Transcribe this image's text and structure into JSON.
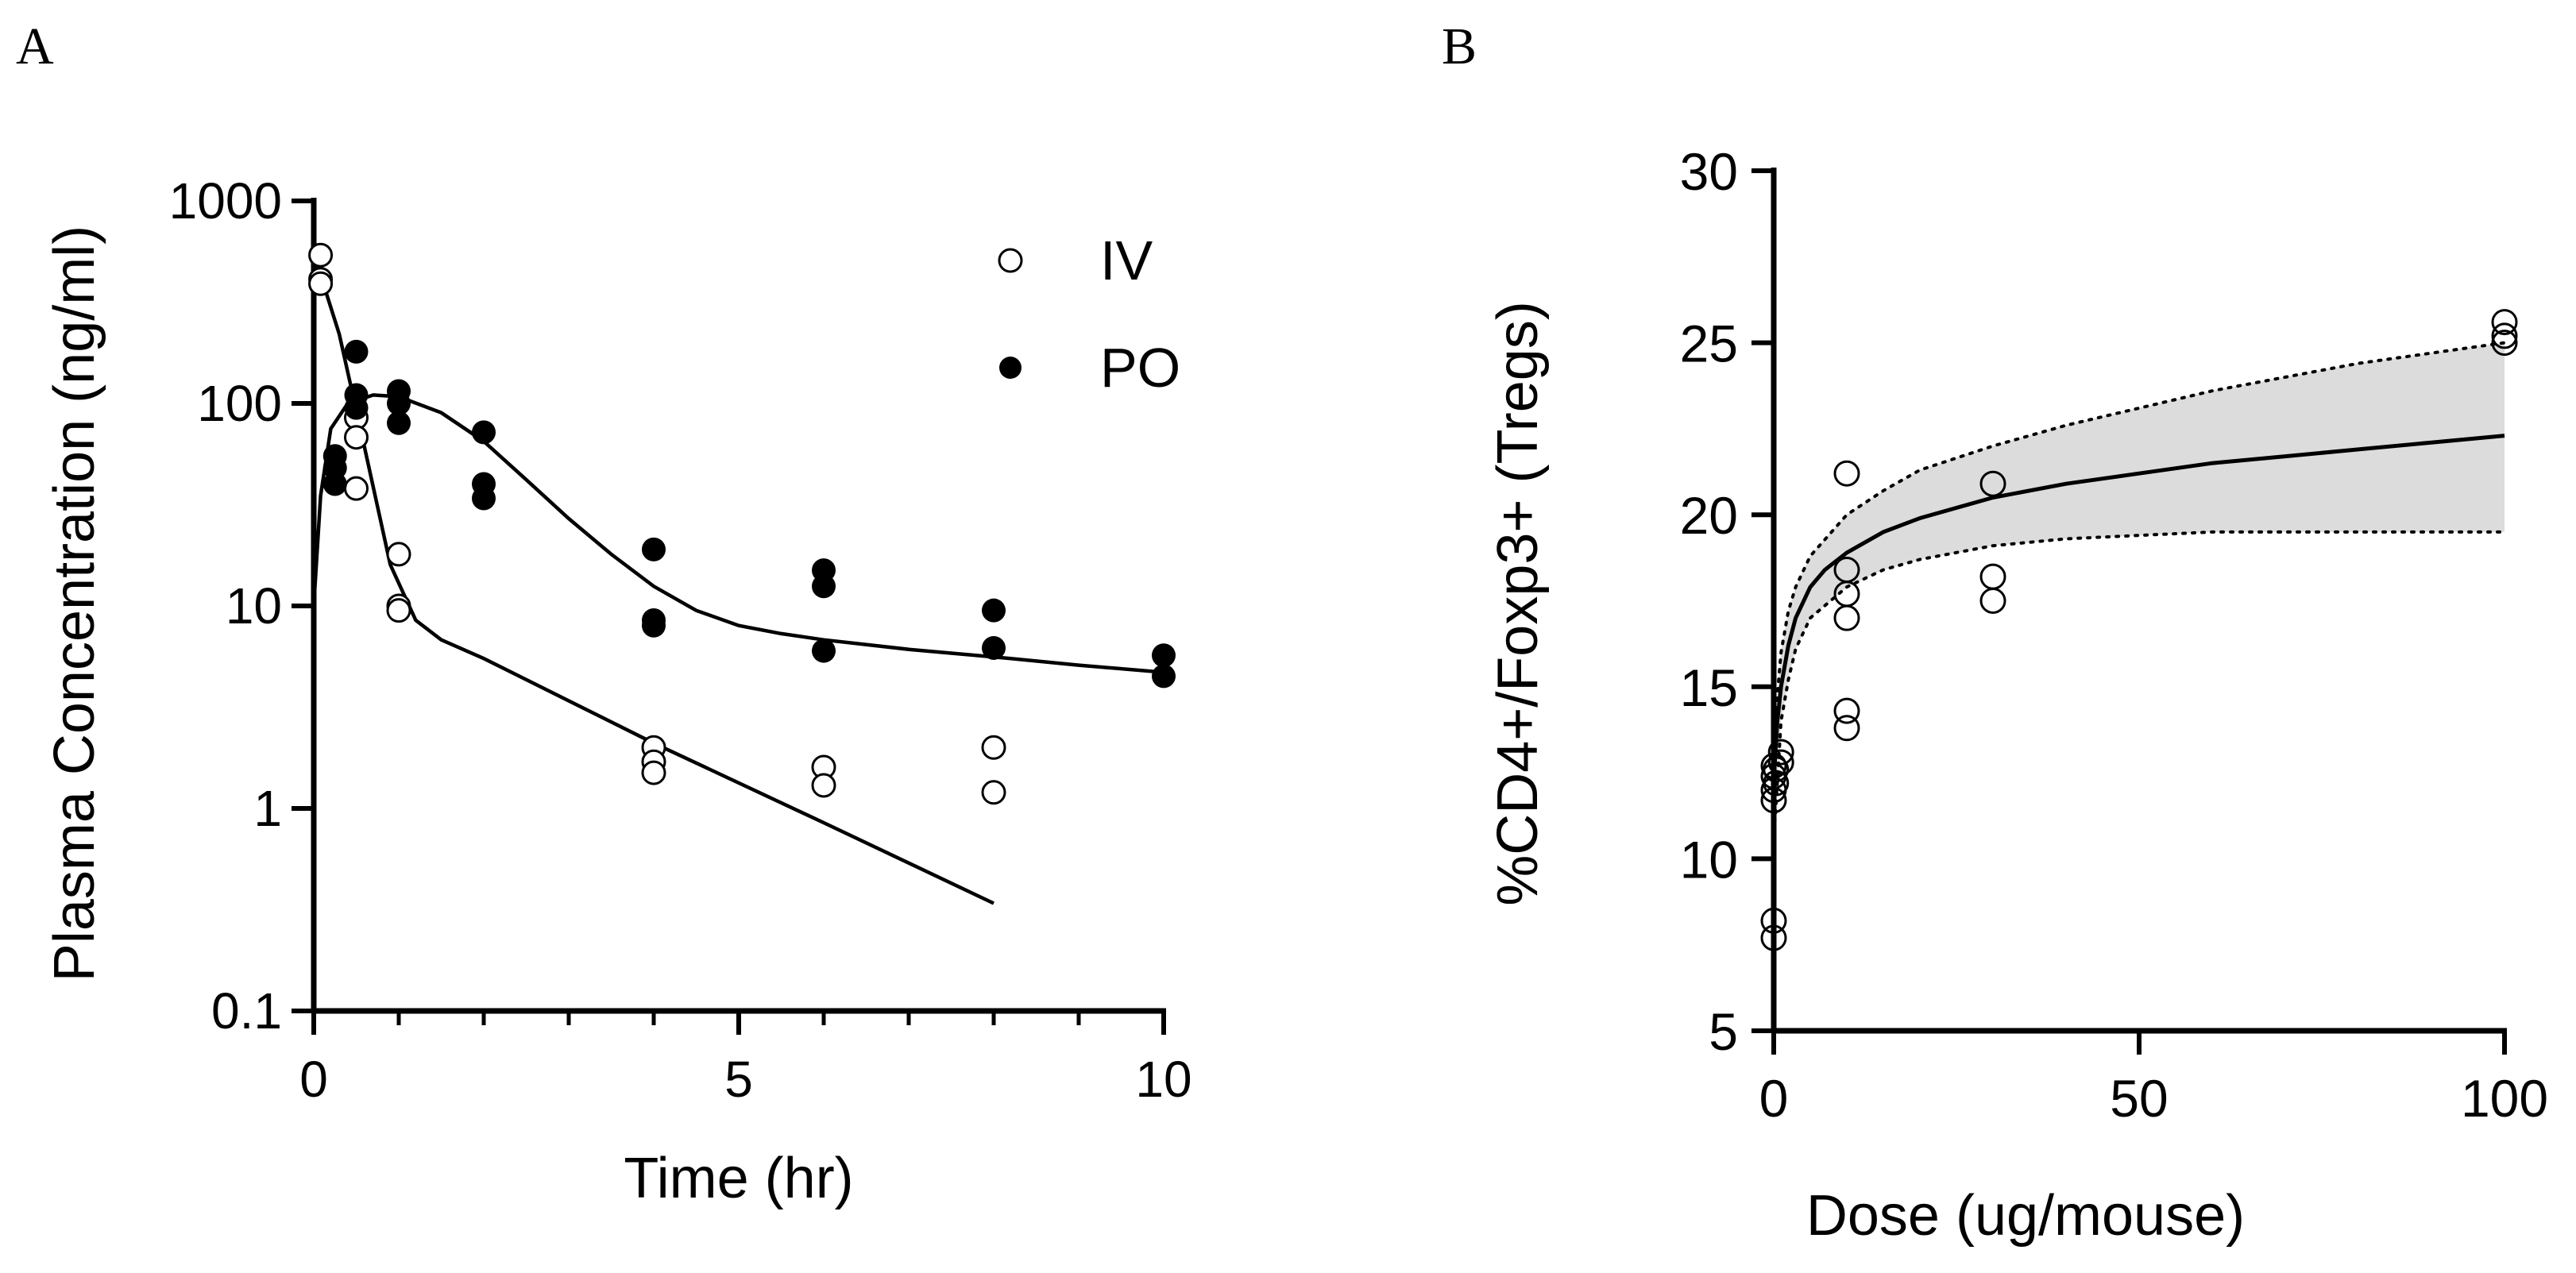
{
  "chart_data": [
    {
      "panel": "A",
      "type": "scatter",
      "xlabel": "Time (hr)",
      "ylabel": "Plasma Concentration (ng/ml)",
      "xlim": [
        0,
        10
      ],
      "ylim": [
        0.1,
        1000
      ],
      "yscale": "log",
      "x_ticks": [
        0,
        5,
        10
      ],
      "x_tick_labels": [
        "0",
        "5",
        "10"
      ],
      "y_ticks": [
        0.1,
        1,
        10,
        100,
        1000
      ],
      "y_tick_labels": [
        "0.1",
        "1",
        "10",
        "100",
        "1000"
      ],
      "legend": {
        "position": "top-right",
        "entries": [
          "IV",
          "PO"
        ]
      },
      "series": [
        {
          "name": "IV",
          "marker": "open-circle",
          "points": [
            [
              0.08,
              540
            ],
            [
              0.08,
              410
            ],
            [
              0.08,
              390
            ],
            [
              0.5,
              85
            ],
            [
              0.5,
              68
            ],
            [
              0.5,
              38
            ],
            [
              1,
              18
            ],
            [
              1,
              10
            ],
            [
              1,
              9.5
            ],
            [
              4,
              2.0
            ],
            [
              4,
              1.7
            ],
            [
              4,
              1.5
            ],
            [
              6,
              1.6
            ],
            [
              6,
              1.3
            ],
            [
              8,
              2.0
            ],
            [
              8,
              1.2
            ]
          ],
          "fit": [
            [
              0,
              550
            ],
            [
              0.3,
              220
            ],
            [
              0.6,
              60
            ],
            [
              0.9,
              16
            ],
            [
              1.2,
              8.5
            ],
            [
              1.5,
              6.8
            ],
            [
              2,
              5.5
            ],
            [
              4,
              2.1
            ],
            [
              6,
              0.85
            ],
            [
              8,
              0.34
            ]
          ]
        },
        {
          "name": "PO",
          "marker": "filled-circle",
          "points": [
            [
              0.25,
              55
            ],
            [
              0.25,
              48
            ],
            [
              0.25,
              40
            ],
            [
              0.5,
              180
            ],
            [
              0.5,
              110
            ],
            [
              0.5,
              95
            ],
            [
              1,
              115
            ],
            [
              1,
              100
            ],
            [
              1,
              80
            ],
            [
              2,
              72
            ],
            [
              2,
              40
            ],
            [
              2,
              34
            ],
            [
              4,
              19
            ],
            [
              4,
              8.5
            ],
            [
              4,
              8
            ],
            [
              6,
              15
            ],
            [
              6,
              12.5
            ],
            [
              6,
              6
            ],
            [
              8,
              9.5
            ],
            [
              8,
              6.2
            ],
            [
              10,
              5.7
            ],
            [
              10,
              4.5
            ]
          ],
          "fit": [
            [
              0,
              10
            ],
            [
              0.08,
              35
            ],
            [
              0.2,
              75
            ],
            [
              0.4,
              100
            ],
            [
              0.7,
              110
            ],
            [
              1,
              108
            ],
            [
              1.5,
              90
            ],
            [
              2,
              65
            ],
            [
              2.5,
              42
            ],
            [
              3,
              27
            ],
            [
              3.5,
              18
            ],
            [
              4,
              12.5
            ],
            [
              4.5,
              9.5
            ],
            [
              5,
              8
            ],
            [
              5.5,
              7.3
            ],
            [
              6,
              6.8
            ],
            [
              7,
              6.1
            ],
            [
              8,
              5.6
            ],
            [
              9,
              5.1
            ],
            [
              10,
              4.7
            ]
          ]
        }
      ]
    },
    {
      "panel": "B",
      "type": "scatter",
      "xlabel": "Dose (ug/mouse)",
      "ylabel": "%CD4+/Foxp3+ (Tregs)",
      "xlim": [
        0,
        100
      ],
      "ylim": [
        5,
        30
      ],
      "x_ticks": [
        0,
        50,
        100
      ],
      "x_tick_labels": [
        "0",
        "50",
        "100"
      ],
      "y_ticks": [
        5,
        10,
        15,
        20,
        25,
        30
      ],
      "y_tick_labels": [
        "5",
        "10",
        "15",
        "20",
        "25",
        "30"
      ],
      "series": [
        {
          "name": "Tregs",
          "marker": "open-circle",
          "points": [
            [
              0,
              8.2
            ],
            [
              0,
              7.7
            ],
            [
              0,
              12.7
            ],
            [
              0,
              12.4
            ],
            [
              0,
              12.0
            ],
            [
              0,
              11.7
            ],
            [
              0.3,
              12.6
            ],
            [
              0.3,
              12.2
            ],
            [
              1,
              13.1
            ],
            [
              1,
              12.8
            ],
            [
              10,
              21.2
            ],
            [
              10,
              18.4
            ],
            [
              10,
              17.7
            ],
            [
              10,
              17.0
            ],
            [
              10,
              14.3
            ],
            [
              10,
              13.8
            ],
            [
              30,
              20.9
            ],
            [
              30,
              18.2
            ],
            [
              30,
              17.5
            ],
            [
              100,
              25.6
            ],
            [
              100,
              25.2
            ],
            [
              100,
              25.0
            ]
          ],
          "fit": [
            [
              0,
              12.3
            ],
            [
              0.5,
              14.0
            ],
            [
              1,
              15.0
            ],
            [
              2,
              16.2
            ],
            [
              3,
              17.0
            ],
            [
              5,
              17.9
            ],
            [
              7,
              18.4
            ],
            [
              10,
              18.9
            ],
            [
              15,
              19.5
            ],
            [
              20,
              19.9
            ],
            [
              30,
              20.5
            ],
            [
              40,
              20.9
            ],
            [
              50,
              21.2
            ],
            [
              60,
              21.5
            ],
            [
              70,
              21.7
            ],
            [
              80,
              21.9
            ],
            [
              90,
              22.1
            ],
            [
              100,
              22.3
            ]
          ],
          "ci_upper": [
            [
              0,
              13.5
            ],
            [
              1,
              16.0
            ],
            [
              2,
              17.2
            ],
            [
              3,
              17.9
            ],
            [
              5,
              18.8
            ],
            [
              10,
              20.0
            ],
            [
              15,
              20.7
            ],
            [
              20,
              21.3
            ],
            [
              30,
              22.0
            ],
            [
              40,
              22.6
            ],
            [
              50,
              23.1
            ],
            [
              60,
              23.6
            ],
            [
              70,
              24.0
            ],
            [
              80,
              24.4
            ],
            [
              90,
              24.7
            ],
            [
              100,
              25.0
            ]
          ],
          "ci_lower": [
            [
              0,
              10.5
            ],
            [
              1,
              14.0
            ],
            [
              2,
              15.2
            ],
            [
              3,
              16.1
            ],
            [
              5,
              17.0
            ],
            [
              10,
              17.9
            ],
            [
              15,
              18.4
            ],
            [
              20,
              18.7
            ],
            [
              30,
              19.1
            ],
            [
              40,
              19.3
            ],
            [
              50,
              19.4
            ],
            [
              60,
              19.5
            ],
            [
              70,
              19.5
            ],
            [
              80,
              19.5
            ],
            [
              90,
              19.5
            ],
            [
              100,
              19.5
            ]
          ]
        }
      ]
    }
  ]
}
